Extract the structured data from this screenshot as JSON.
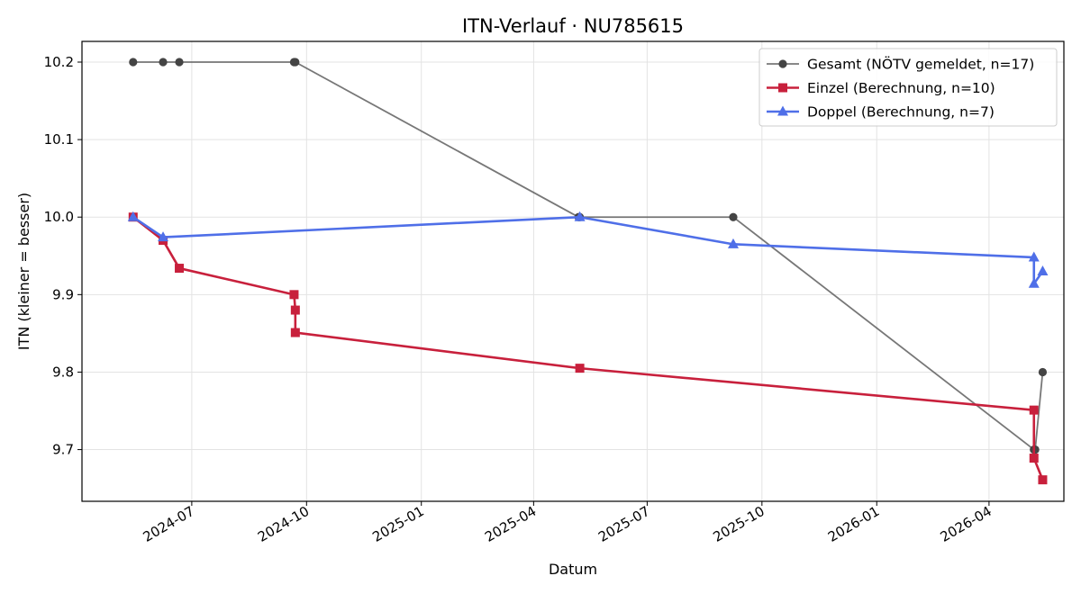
{
  "chart_data": {
    "type": "line",
    "title": "ITN-Verlauf · NU785615",
    "xlabel": "Datum",
    "ylabel": "ITN  (kleiner = besser)",
    "x_type": "date",
    "xlim": [
      "2024-04-04",
      "2026-05-31"
    ],
    "ylim": [
      9.6333,
      10.2267
    ],
    "x_ticks": [
      "2024-07-01",
      "2024-10-01",
      "2025-01-01",
      "2025-04-01",
      "2025-07-01",
      "2025-10-01",
      "2026-01-01",
      "2026-04-01"
    ],
    "x_tick_labels": [
      "2024-07",
      "2024-10",
      "2025-01",
      "2025-04",
      "2025-07",
      "2025-10",
      "2026-01",
      "2026-04"
    ],
    "y_ticks": [
      9.7,
      9.8,
      9.9,
      10.0,
      10.1,
      10.2
    ],
    "y_tick_labels": [
      "9.7",
      "9.8",
      "9.9",
      "10.0",
      "10.1",
      "10.2"
    ],
    "grid": true,
    "legend_position": "top-right",
    "series": [
      {
        "name": "Gesamt (NÖTV gemeldet, n=17)",
        "color": "#555555",
        "marker": "circle",
        "points": [
          {
            "x": "2024-05-15",
            "y": 10.2
          },
          {
            "x": "2024-06-08",
            "y": 10.2
          },
          {
            "x": "2024-06-21",
            "y": 10.2
          },
          {
            "x": "2024-09-21",
            "y": 10.2
          },
          {
            "x": "2024-09-22",
            "y": 10.2
          },
          {
            "x": "2025-05-07",
            "y": 10.0
          },
          {
            "x": "2025-05-08",
            "y": 10.0
          },
          {
            "x": "2025-09-08",
            "y": 10.0
          },
          {
            "x": "2026-05-07",
            "y": 9.7
          },
          {
            "x": "2026-05-08",
            "y": 9.7
          },
          {
            "x": "2026-05-14",
            "y": 9.8
          }
        ]
      },
      {
        "name": "Einzel (Berechnung, n=10)",
        "color": "#c8203c",
        "marker": "square",
        "points": [
          {
            "x": "2024-05-15",
            "y": 10.0
          },
          {
            "x": "2024-06-08",
            "y": 9.97
          },
          {
            "x": "2024-06-21",
            "y": 9.934
          },
          {
            "x": "2024-09-21",
            "y": 9.9
          },
          {
            "x": "2024-09-22",
            "y": 9.88
          },
          {
            "x": "2024-09-22",
            "y": 9.851
          },
          {
            "x": "2025-05-08",
            "y": 9.805
          },
          {
            "x": "2026-05-07",
            "y": 9.751
          },
          {
            "x": "2026-05-07",
            "y": 9.689
          },
          {
            "x": "2026-05-14",
            "y": 9.661
          }
        ]
      },
      {
        "name": "Doppel (Berechnung, n=7)",
        "color": "#4f6fe8",
        "marker": "triangle",
        "points": [
          {
            "x": "2024-05-15",
            "y": 10.0
          },
          {
            "x": "2024-06-08",
            "y": 9.974
          },
          {
            "x": "2025-05-08",
            "y": 10.0
          },
          {
            "x": "2025-09-08",
            "y": 9.965
          },
          {
            "x": "2026-05-07",
            "y": 9.948
          },
          {
            "x": "2026-05-07",
            "y": 9.914
          },
          {
            "x": "2026-05-14",
            "y": 9.93
          }
        ]
      }
    ]
  }
}
